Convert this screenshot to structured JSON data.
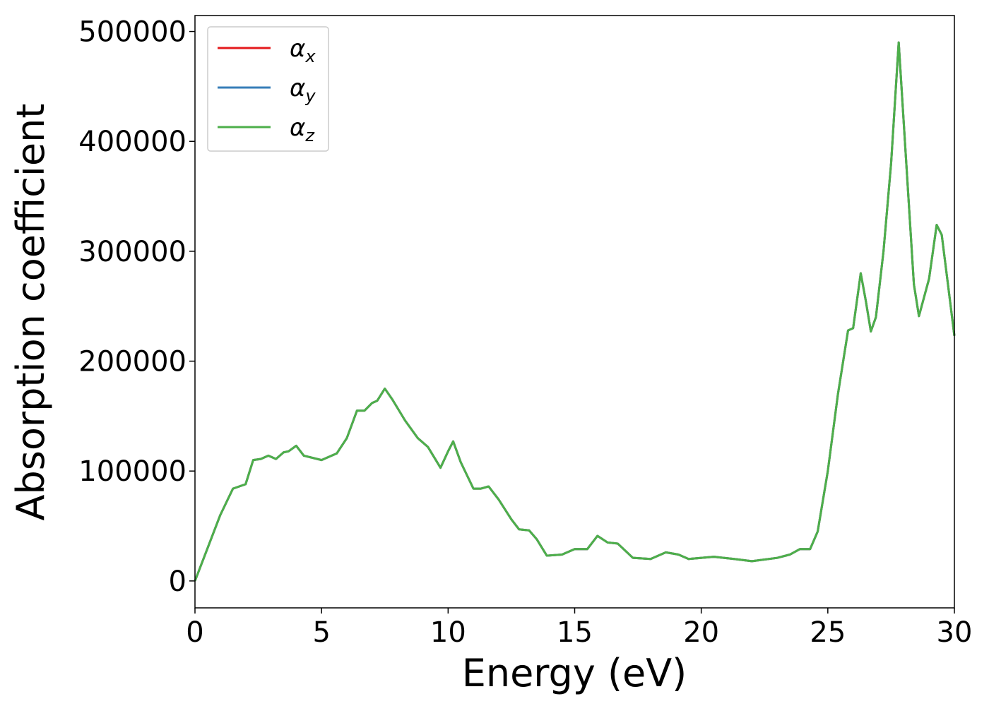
{
  "chart_data": {
    "type": "line",
    "xlabel": "Energy (eV)",
    "ylabel": "Absorption coefficient",
    "x": [
      0,
      0.5,
      1,
      1.5,
      2,
      2.3,
      2.6,
      2.9,
      3.2,
      3.5,
      3.7,
      4.0,
      4.3,
      5,
      5.6,
      6,
      6.4,
      6.7,
      7,
      7.2,
      7.5,
      7.8,
      8.3,
      8.8,
      9.2,
      9.7,
      10,
      10.2,
      10.5,
      11,
      11.3,
      11.6,
      12,
      12.5,
      12.8,
      13.2,
      13.5,
      13.9,
      14.5,
      15,
      15.5,
      15.9,
      16.3,
      16.7,
      17.3,
      18,
      18.6,
      19.1,
      19.5,
      20.5,
      21.3,
      22,
      23,
      23.5,
      23.9,
      24.3,
      24.6,
      25,
      25.4,
      25.8,
      26,
      26.3,
      26.5,
      26.7,
      26.9,
      27.2,
      27.5,
      27.8,
      28.1,
      28.4,
      28.6,
      29,
      29.3,
      29.5,
      29.8,
      30
    ],
    "series": [
      {
        "name": "αx",
        "color": "#e41a1c",
        "values": [
          0,
          30000,
          60000,
          84000,
          88000,
          110000,
          111000,
          114000,
          111000,
          117000,
          118000,
          123000,
          114000,
          110000,
          116000,
          130000,
          155000,
          155000,
          162000,
          164000,
          175000,
          165000,
          146000,
          130000,
          122000,
          103000,
          118000,
          127000,
          108000,
          84000,
          84000,
          86000,
          74000,
          56000,
          47000,
          46000,
          38000,
          23000,
          24000,
          29000,
          29000,
          41000,
          35000,
          34000,
          21000,
          20000,
          26000,
          24000,
          20000,
          22000,
          20000,
          18000,
          21000,
          24000,
          29000,
          29000,
          45000,
          100000,
          170000,
          228000,
          230000,
          280000,
          255000,
          227000,
          240000,
          300000,
          380000,
          490000,
          380000,
          270000,
          241000,
          275000,
          324000,
          315000,
          260000,
          223000
        ]
      },
      {
        "name": "αy",
        "color": "#377eb8",
        "values": [
          0,
          30000,
          60000,
          84000,
          88000,
          110000,
          111000,
          114000,
          111000,
          117000,
          118000,
          123000,
          114000,
          110000,
          116000,
          130000,
          155000,
          155000,
          162000,
          164000,
          175000,
          165000,
          146000,
          130000,
          122000,
          103000,
          118000,
          127000,
          108000,
          84000,
          84000,
          86000,
          74000,
          56000,
          47000,
          46000,
          38000,
          23000,
          24000,
          29000,
          29000,
          41000,
          35000,
          34000,
          21000,
          20000,
          26000,
          24000,
          20000,
          22000,
          20000,
          18000,
          21000,
          24000,
          29000,
          29000,
          45000,
          100000,
          170000,
          228000,
          230000,
          280000,
          255000,
          227000,
          240000,
          300000,
          380000,
          490000,
          380000,
          270000,
          241000,
          275000,
          324000,
          315000,
          260000,
          223000
        ]
      },
      {
        "name": "αz",
        "color": "#4daf4a",
        "values": [
          0,
          30000,
          60000,
          84000,
          88000,
          110000,
          111000,
          114000,
          111000,
          117000,
          118000,
          123000,
          114000,
          110000,
          116000,
          130000,
          155000,
          155000,
          162000,
          164000,
          175000,
          165000,
          146000,
          130000,
          122000,
          103000,
          118000,
          127000,
          108000,
          84000,
          84000,
          86000,
          74000,
          56000,
          47000,
          46000,
          38000,
          23000,
          24000,
          29000,
          29000,
          41000,
          35000,
          34000,
          21000,
          20000,
          26000,
          24000,
          20000,
          22000,
          20000,
          18000,
          21000,
          24000,
          29000,
          29000,
          45000,
          100000,
          170000,
          228000,
          230000,
          280000,
          255000,
          227000,
          240000,
          300000,
          380000,
          490000,
          380000,
          270000,
          241000,
          275000,
          324000,
          315000,
          260000,
          223000
        ]
      }
    ],
    "xlim": [
      0,
      30
    ],
    "xticks": [
      0,
      5,
      10,
      15,
      20,
      25,
      30
    ],
    "ylim": [
      -24500,
      514500
    ],
    "yticks": [
      0,
      100000,
      200000,
      300000,
      400000,
      500000
    ],
    "legend": "upper left",
    "grid": false
  }
}
